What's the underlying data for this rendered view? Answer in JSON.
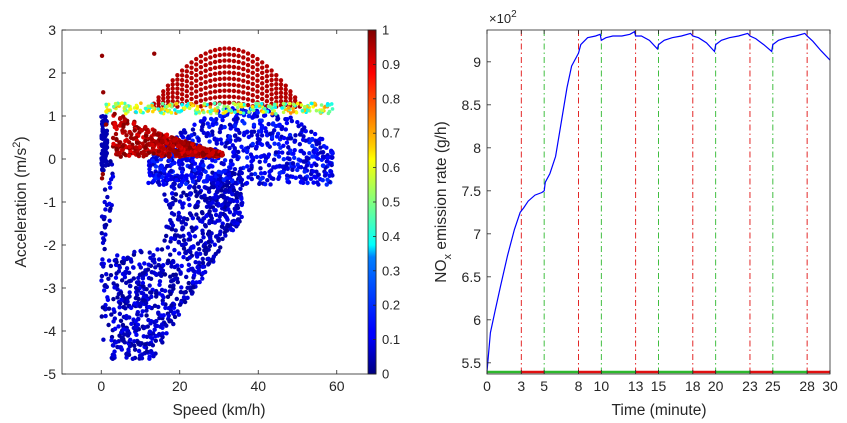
{
  "chart_data": [
    {
      "type": "scatter",
      "xlabel": "Speed (km/h)",
      "ylabel": "Acceleration (m/s^2)",
      "xlim": [
        -10,
        70
      ],
      "ylim": [
        -5,
        3
      ],
      "xticks": [
        0,
        20,
        40,
        60
      ],
      "yticks": [
        -5,
        -4,
        -3,
        -2,
        -1,
        0,
        1,
        2,
        3
      ],
      "grid": false,
      "colorbar": {
        "range": [
          0,
          1
        ],
        "ticks": [
          0,
          0.1,
          0.2,
          0.3,
          0.4,
          0.5,
          0.6,
          0.7,
          0.8,
          0.9,
          1
        ],
        "colormap": "jet"
      },
      "marker_color_scale": "value from 0 (dark blue) to 1 (dark red)"
    },
    {
      "type": "line",
      "xlabel": "Time (minute)",
      "ylabel_main": "NO",
      "ylabel_sub": "x",
      "ylabel_rest": " emission rate (g/h)",
      "exponent_label": "×10",
      "exponent_power": "2",
      "xlim": [
        0,
        30
      ],
      "ylim": [
        5.37,
        9.37
      ],
      "xticks": [
        0,
        3,
        5,
        8,
        10,
        13,
        15,
        18,
        20,
        23,
        25,
        28,
        30
      ],
      "yticks": [
        5.5,
        6,
        6.5,
        7,
        7.5,
        8,
        8.5,
        9
      ],
      "ytick_labels": [
        "5.5",
        "6",
        "6.5",
        "7",
        "7.5",
        "8",
        "8.5",
        "9"
      ],
      "grid": false,
      "series": [
        {
          "color": "#0000ff",
          "x": [
            0,
            0.3,
            0.7,
            1.2,
            1.8,
            2.4,
            2.9,
            3.2,
            3.6,
            4.2,
            4.8,
            5.0,
            5.1,
            5.5,
            6.0,
            6.5,
            7.0,
            7.4,
            7.8,
            8.0,
            8.2,
            8.8,
            9.5,
            9.9,
            10.0,
            10.4,
            11.0,
            11.8,
            12.5,
            12.9,
            13.0,
            13.5,
            14.2,
            14.9,
            15.0,
            15.5,
            16.2,
            17.0,
            17.8,
            18.0,
            18.5,
            19.2,
            19.9,
            20.0,
            20.5,
            21.2,
            22.0,
            22.8,
            23.0,
            23.5,
            24.2,
            24.9,
            25.0,
            25.5,
            26.2,
            27.0,
            27.8,
            28.0,
            28.5,
            29.2,
            30.0
          ],
          "y": [
            5.4,
            5.85,
            6.1,
            6.4,
            6.75,
            7.05,
            7.25,
            7.3,
            7.38,
            7.45,
            7.48,
            7.5,
            7.6,
            7.7,
            7.9,
            8.3,
            8.7,
            8.95,
            9.05,
            9.1,
            9.2,
            9.28,
            9.3,
            9.32,
            9.25,
            9.28,
            9.3,
            9.3,
            9.32,
            9.35,
            9.3,
            9.3,
            9.25,
            9.15,
            9.2,
            9.25,
            9.28,
            9.3,
            9.33,
            9.3,
            9.28,
            9.22,
            9.12,
            9.2,
            9.25,
            9.28,
            9.3,
            9.33,
            9.3,
            9.27,
            9.2,
            9.12,
            9.2,
            9.25,
            9.28,
            9.3,
            9.33,
            9.3,
            9.24,
            9.13,
            9.02
          ]
        }
      ],
      "red_markers_x": [
        3,
        8,
        13,
        18,
        23,
        28
      ],
      "green_markers_x": [
        5,
        10,
        15,
        20,
        25
      ],
      "red_segments": [
        [
          3,
          5
        ],
        [
          8,
          10
        ],
        [
          13,
          15
        ],
        [
          18,
          20
        ],
        [
          23,
          25
        ],
        [
          28,
          30
        ]
      ],
      "green_segments": [
        [
          0,
          3
        ],
        [
          5,
          8
        ],
        [
          10,
          13
        ],
        [
          15,
          18
        ],
        [
          20,
          23
        ],
        [
          25,
          28
        ]
      ]
    }
  ]
}
